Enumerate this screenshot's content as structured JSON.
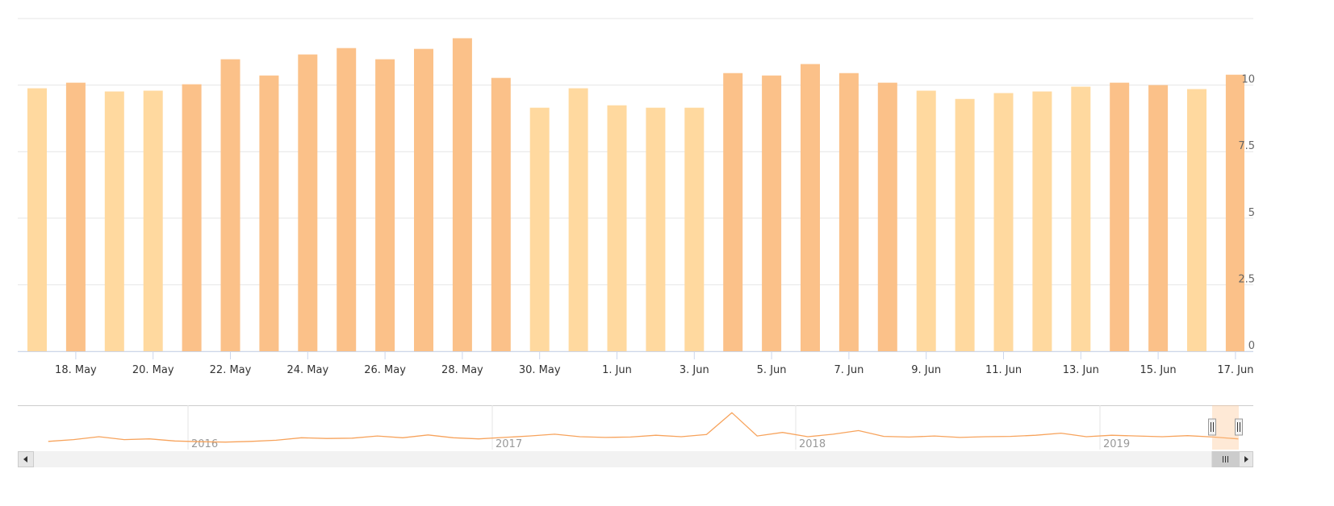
{
  "chart_data": {
    "type": "bar",
    "title": "",
    "xlabel": "",
    "ylabel": "",
    "ylim": [
      0,
      12.5
    ],
    "yticks": [
      "0",
      "2.5",
      "5",
      "7.5",
      "10"
    ],
    "ytick_values": [
      0,
      2.5,
      5,
      7.5,
      10
    ],
    "y_axis_side": "right",
    "grid": true,
    "legend": "none",
    "dates": [
      "2019-05-17",
      "2019-05-18",
      "2019-05-19",
      "2019-05-20",
      "2019-05-21",
      "2019-05-22",
      "2019-05-23",
      "2019-05-24",
      "2019-05-25",
      "2019-05-26",
      "2019-05-27",
      "2019-05-28",
      "2019-05-29",
      "2019-05-30",
      "2019-05-31",
      "2019-06-01",
      "2019-06-02",
      "2019-06-03",
      "2019-06-04",
      "2019-06-05",
      "2019-06-06",
      "2019-06-07",
      "2019-06-08",
      "2019-06-09",
      "2019-06-10",
      "2019-06-11",
      "2019-06-12",
      "2019-06-13",
      "2019-06-14",
      "2019-06-15",
      "2019-06-16",
      "2019-06-17"
    ],
    "values": [
      9.88,
      10.09,
      9.76,
      9.79,
      10.03,
      10.97,
      10.36,
      11.15,
      11.39,
      10.97,
      11.36,
      11.76,
      10.27,
      9.15,
      9.88,
      9.24,
      9.15,
      9.15,
      10.45,
      10.36,
      10.79,
      10.45,
      10.09,
      9.79,
      9.48,
      9.7,
      9.76,
      9.94,
      10.09,
      10.0,
      9.85,
      10.39
    ],
    "xtick_labels": [
      "18. May",
      "20. May",
      "22. May",
      "24. May",
      "26. May",
      "28. May",
      "30. May",
      "1. Jun",
      "3. Jun",
      "5. Jun",
      "7. Jun",
      "9. Jun",
      "11. Jun",
      "13. Jun",
      "15. Jun",
      "17. Jun"
    ],
    "xtick_dates": [
      "2019-05-18",
      "2019-05-20",
      "2019-05-22",
      "2019-05-24",
      "2019-05-26",
      "2019-05-28",
      "2019-05-30",
      "2019-06-01",
      "2019-06-03",
      "2019-06-05",
      "2019-06-07",
      "2019-06-09",
      "2019-06-11",
      "2019-06-13",
      "2019-06-15",
      "2019-06-17"
    ],
    "colors": {
      "below_10": "#FFD99F",
      "at_or_above_10": "#FBC189"
    },
    "navigator": {
      "type": "line",
      "color": "#F7A35C",
      "start": "2015-07",
      "monthly_values": [
        9.5,
        10,
        10.8,
        10,
        10.2,
        9.6,
        9.4,
        9.3,
        9.5,
        9.8,
        10.5,
        10.3,
        10.4,
        11,
        10.5,
        11.3,
        10.5,
        10.2,
        10.6,
        11,
        11.5,
        10.8,
        10.6,
        10.7,
        11.2,
        10.8,
        11.4,
        17.5,
        11,
        12,
        10.8,
        11.5,
        12.5,
        10.9,
        10.7,
        11,
        10.6,
        10.8,
        10.9,
        11.2,
        11.8,
        10.8,
        11.2,
        11,
        10.8,
        11.1,
        10.7,
        10.2
      ],
      "year_labels": [
        "2016",
        "2017",
        "2018",
        "2019"
      ],
      "selected_range": [
        "2019-05-17",
        "2019-06-17"
      ]
    }
  }
}
